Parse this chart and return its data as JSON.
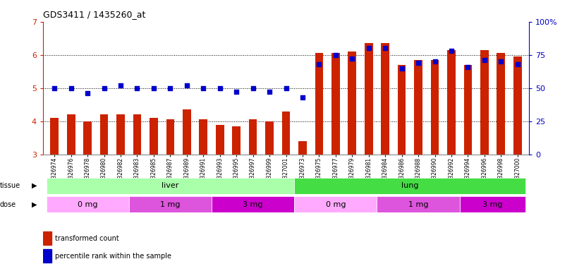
{
  "title": "GDS3411 / 1435260_at",
  "samples": [
    "GSM326974",
    "GSM326976",
    "GSM326978",
    "GSM326980",
    "GSM326982",
    "GSM326983",
    "GSM326985",
    "GSM326987",
    "GSM326989",
    "GSM326991",
    "GSM326993",
    "GSM326995",
    "GSM326997",
    "GSM326999",
    "GSM327001",
    "GSM326973",
    "GSM326975",
    "GSM326977",
    "GSM326979",
    "GSM326981",
    "GSM326984",
    "GSM326986",
    "GSM326988",
    "GSM326990",
    "GSM326992",
    "GSM326994",
    "GSM326996",
    "GSM326998",
    "GSM327000"
  ],
  "red_bars": [
    4.1,
    4.2,
    4.0,
    4.2,
    4.2,
    4.2,
    4.1,
    4.05,
    4.35,
    4.05,
    3.9,
    3.85,
    4.05,
    4.0,
    4.3,
    3.4,
    6.05,
    6.05,
    6.1,
    6.35,
    6.35,
    5.7,
    5.85,
    5.85,
    6.15,
    5.7,
    6.15,
    6.05,
    5.95
  ],
  "blue_dots": [
    50,
    50,
    46,
    50,
    52,
    50,
    50,
    50,
    52,
    50,
    50,
    47,
    50,
    47,
    50,
    43,
    68,
    75,
    72,
    80,
    80,
    65,
    69,
    70,
    78,
    66,
    71,
    70,
    68
  ],
  "ylim_left": [
    3,
    7
  ],
  "ylim_right": [
    0,
    100
  ],
  "yticks_left": [
    3,
    4,
    5,
    6,
    7
  ],
  "yticks_right": [
    0,
    25,
    50,
    75,
    100
  ],
  "ytick_labels_right": [
    "0",
    "25",
    "50",
    "75",
    "100%"
  ],
  "tissue_groups": [
    {
      "label": "liver",
      "start": 0,
      "end": 14,
      "color": "#aaffaa"
    },
    {
      "label": "lung",
      "start": 15,
      "end": 28,
      "color": "#44dd44"
    }
  ],
  "dose_groups": [
    {
      "label": "0 mg",
      "start": 0,
      "end": 4,
      "color": "#ffaaff"
    },
    {
      "label": "1 mg",
      "start": 5,
      "end": 9,
      "color": "#dd55dd"
    },
    {
      "label": "3 mg",
      "start": 10,
      "end": 14,
      "color": "#cc00cc"
    },
    {
      "label": "0 mg",
      "start": 15,
      "end": 19,
      "color": "#ffaaff"
    },
    {
      "label": "1 mg",
      "start": 20,
      "end": 24,
      "color": "#dd55dd"
    },
    {
      "label": "3 mg",
      "start": 25,
      "end": 28,
      "color": "#cc00cc"
    }
  ],
  "bar_color": "#cc2200",
  "dot_color": "#0000cc",
  "bg_color": "#ffffff",
  "left_axis_color": "#cc2200",
  "right_axis_color": "#0000cc",
  "bar_width": 0.5,
  "dot_size": 18,
  "grid_lines": [
    4,
    5,
    6
  ],
  "label_tissue": "tissue",
  "label_dose": "dose",
  "legend_bar": "transformed count",
  "legend_dot": "percentile rank within the sample"
}
